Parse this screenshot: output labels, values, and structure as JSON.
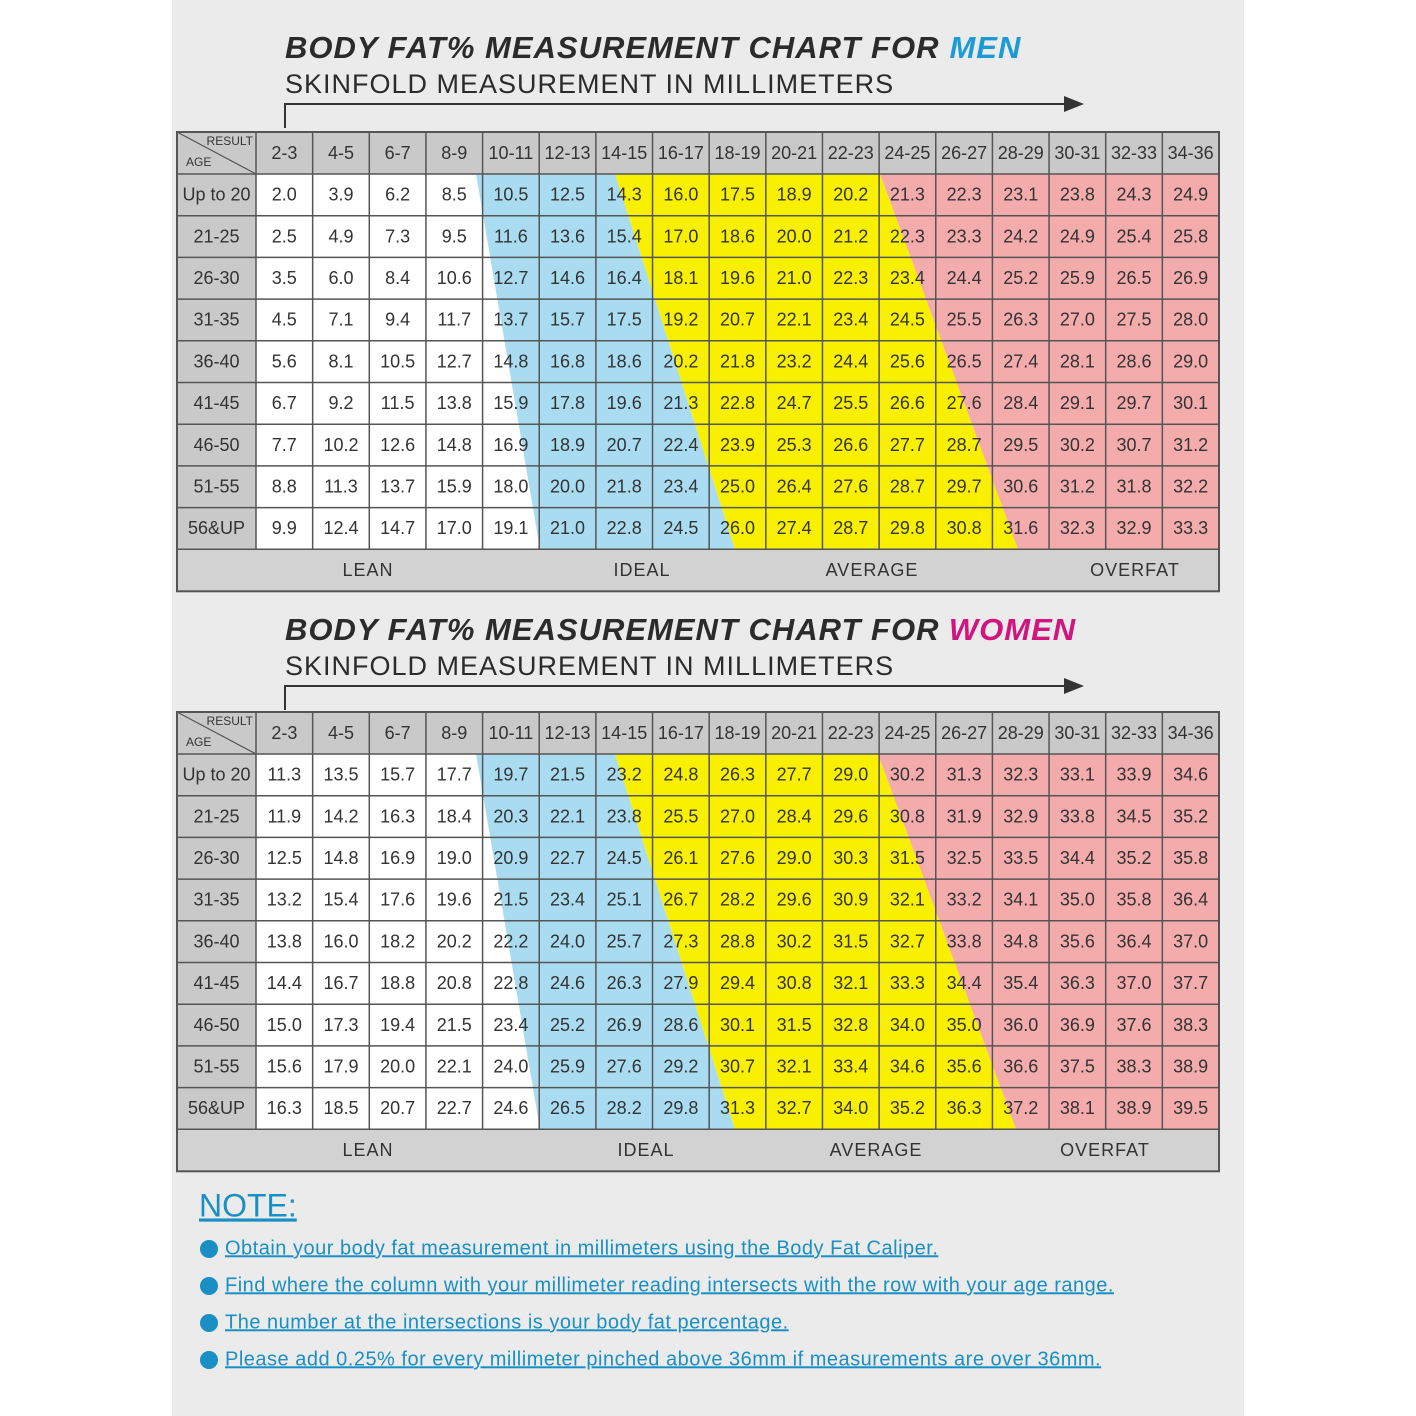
{
  "men": {
    "title": "BODY FAT% MEASUREMENT CHART FOR",
    "title_highlight": "MEN",
    "subtitle": "SKINFOLD MEASUREMENT IN MILLIMETERS",
    "corner": {
      "top": "RESULT",
      "bottom": "AGE"
    },
    "columns": [
      "2-3",
      "4-5",
      "6-7",
      "8-9",
      "10-11",
      "12-13",
      "14-15",
      "16-17",
      "18-19",
      "20-21",
      "22-23",
      "24-25",
      "26-27",
      "28-29",
      "30-31",
      "32-33",
      "34-36"
    ],
    "rows": [
      {
        "age": "Up to 20",
        "values": [
          "2.0",
          "3.9",
          "6.2",
          "8.5",
          "10.5",
          "12.5",
          "14.3",
          "16.0",
          "17.5",
          "18.9",
          "20.2",
          "21.3",
          "22.3",
          "23.1",
          "23.8",
          "24.3",
          "24.9"
        ]
      },
      {
        "age": "21-25",
        "values": [
          "2.5",
          "4.9",
          "7.3",
          "9.5",
          "11.6",
          "13.6",
          "15.4",
          "17.0",
          "18.6",
          "20.0",
          "21.2",
          "22.3",
          "23.3",
          "24.2",
          "24.9",
          "25.4",
          "25.8"
        ]
      },
      {
        "age": "26-30",
        "values": [
          "3.5",
          "6.0",
          "8.4",
          "10.6",
          "12.7",
          "14.6",
          "16.4",
          "18.1",
          "19.6",
          "21.0",
          "22.3",
          "23.4",
          "24.4",
          "25.2",
          "25.9",
          "26.5",
          "26.9"
        ]
      },
      {
        "age": "31-35",
        "values": [
          "4.5",
          "7.1",
          "9.4",
          "11.7",
          "13.7",
          "15.7",
          "17.5",
          "19.2",
          "20.7",
          "22.1",
          "23.4",
          "24.5",
          "25.5",
          "26.3",
          "27.0",
          "27.5",
          "28.0"
        ]
      },
      {
        "age": "36-40",
        "values": [
          "5.6",
          "8.1",
          "10.5",
          "12.7",
          "14.8",
          "16.8",
          "18.6",
          "20.2",
          "21.8",
          "23.2",
          "24.4",
          "25.6",
          "26.5",
          "27.4",
          "28.1",
          "28.6",
          "29.0"
        ]
      },
      {
        "age": "41-45",
        "values": [
          "6.7",
          "9.2",
          "11.5",
          "13.8",
          "15.9",
          "17.8",
          "19.6",
          "21.3",
          "22.8",
          "24.7",
          "25.5",
          "26.6",
          "27.6",
          "28.4",
          "29.1",
          "29.7",
          "30.1"
        ]
      },
      {
        "age": "46-50",
        "values": [
          "7.7",
          "10.2",
          "12.6",
          "14.8",
          "16.9",
          "18.9",
          "20.7",
          "22.4",
          "23.9",
          "25.3",
          "26.6",
          "27.7",
          "28.7",
          "29.5",
          "30.2",
          "30.7",
          "31.2"
        ]
      },
      {
        "age": "51-55",
        "values": [
          "8.8",
          "11.3",
          "13.7",
          "15.9",
          "18.0",
          "20.0",
          "21.8",
          "23.4",
          "25.0",
          "26.4",
          "27.6",
          "28.7",
          "29.7",
          "30.6",
          "31.2",
          "31.8",
          "32.2"
        ]
      },
      {
        "age": "56&UP",
        "values": [
          "9.9",
          "12.4",
          "14.7",
          "17.0",
          "19.1",
          "21.0",
          "22.8",
          "24.5",
          "26.0",
          "27.4",
          "28.7",
          "29.8",
          "30.8",
          "31.6",
          "32.3",
          "32.9",
          "33.3"
        ]
      }
    ],
    "categories": [
      "LEAN",
      "IDEAL",
      "AVERAGE",
      "OVERFAT"
    ]
  },
  "women": {
    "title": "BODY FAT% MEASUREMENT CHART FOR",
    "title_highlight": "WOMEN",
    "subtitle": "SKINFOLD MEASUREMENT IN MILLIMETERS",
    "corner": {
      "top": "RESULT",
      "bottom": "AGE"
    },
    "columns": [
      "2-3",
      "4-5",
      "6-7",
      "8-9",
      "10-11",
      "12-13",
      "14-15",
      "16-17",
      "18-19",
      "20-21",
      "22-23",
      "24-25",
      "26-27",
      "28-29",
      "30-31",
      "32-33",
      "34-36"
    ],
    "rows": [
      {
        "age": "Up to 20",
        "values": [
          "11.3",
          "13.5",
          "15.7",
          "17.7",
          "19.7",
          "21.5",
          "23.2",
          "24.8",
          "26.3",
          "27.7",
          "29.0",
          "30.2",
          "31.3",
          "32.3",
          "33.1",
          "33.9",
          "34.6"
        ]
      },
      {
        "age": "21-25",
        "values": [
          "11.9",
          "14.2",
          "16.3",
          "18.4",
          "20.3",
          "22.1",
          "23.8",
          "25.5",
          "27.0",
          "28.4",
          "29.6",
          "30.8",
          "31.9",
          "32.9",
          "33.8",
          "34.5",
          "35.2"
        ]
      },
      {
        "age": "26-30",
        "values": [
          "12.5",
          "14.8",
          "16.9",
          "19.0",
          "20.9",
          "22.7",
          "24.5",
          "26.1",
          "27.6",
          "29.0",
          "30.3",
          "31.5",
          "32.5",
          "33.5",
          "34.4",
          "35.2",
          "35.8"
        ]
      },
      {
        "age": "31-35",
        "values": [
          "13.2",
          "15.4",
          "17.6",
          "19.6",
          "21.5",
          "23.4",
          "25.1",
          "26.7",
          "28.2",
          "29.6",
          "30.9",
          "32.1",
          "33.2",
          "34.1",
          "35.0",
          "35.8",
          "36.4"
        ]
      },
      {
        "age": "36-40",
        "values": [
          "13.8",
          "16.0",
          "18.2",
          "20.2",
          "22.2",
          "24.0",
          "25.7",
          "27.3",
          "28.8",
          "30.2",
          "31.5",
          "32.7",
          "33.8",
          "34.8",
          "35.6",
          "36.4",
          "37.0"
        ]
      },
      {
        "age": "41-45",
        "values": [
          "14.4",
          "16.7",
          "18.8",
          "20.8",
          "22.8",
          "24.6",
          "26.3",
          "27.9",
          "29.4",
          "30.8",
          "32.1",
          "33.3",
          "34.4",
          "35.4",
          "36.3",
          "37.0",
          "37.7"
        ]
      },
      {
        "age": "46-50",
        "values": [
          "15.0",
          "17.3",
          "19.4",
          "21.5",
          "23.4",
          "25.2",
          "26.9",
          "28.6",
          "30.1",
          "31.5",
          "32.8",
          "34.0",
          "35.0",
          "36.0",
          "36.9",
          "37.6",
          "38.3"
        ]
      },
      {
        "age": "51-55",
        "values": [
          "15.6",
          "17.9",
          "20.0",
          "22.1",
          "24.0",
          "25.9",
          "27.6",
          "29.2",
          "30.7",
          "32.1",
          "33.4",
          "34.6",
          "35.6",
          "36.6",
          "37.5",
          "38.3",
          "38.9"
        ]
      },
      {
        "age": "56&UP",
        "values": [
          "16.3",
          "18.5",
          "20.7",
          "22.7",
          "24.6",
          "26.5",
          "28.2",
          "29.8",
          "31.3",
          "32.7",
          "34.0",
          "35.2",
          "36.3",
          "37.2",
          "38.1",
          "38.9",
          "39.5"
        ]
      }
    ],
    "categories": [
      "LEAN",
      "IDEAL",
      "AVERAGE",
      "OVERFAT"
    ]
  },
  "note": {
    "title": "NOTE:",
    "items": [
      "Obtain your body fat measurement in millimeters using the Body Fat Caliper.",
      "Find where the column with your millimeter reading intersects with the row with your age range.",
      "The number at the intersections is your body fat percentage.",
      "Please add 0.25% for every millimeter pinched above 36mm if measurements are over 36mm."
    ]
  }
}
